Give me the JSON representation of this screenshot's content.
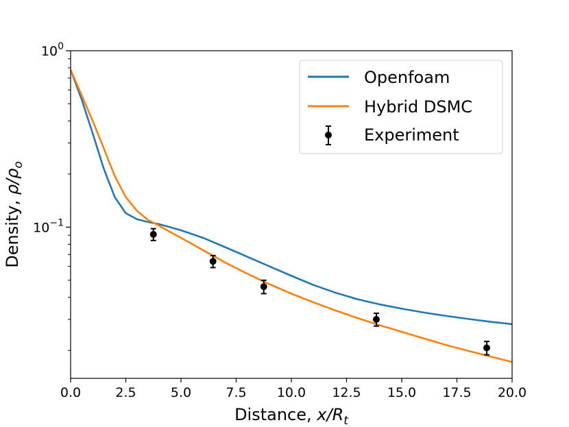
{
  "chart_data": {
    "type": "line",
    "title": "",
    "xlabel": "Distance, x/R_t",
    "xlabel_parts": {
      "text": "Distance, ",
      "math": "x/R",
      "sub": "t"
    },
    "ylabel": "Density, ρ/ρ_o",
    "ylabel_parts": {
      "text": "Density, ",
      "math": "ρ/ρ",
      "sub": "o"
    },
    "xlim": [
      0,
      20
    ],
    "ylim": [
      0.0139,
      1.0
    ],
    "yscale": "log",
    "grid": false,
    "legend_position": "top-right",
    "x_ticks": [
      {
        "value": 0,
        "label": "0.0"
      },
      {
        "value": 2.5,
        "label": "2.5"
      },
      {
        "value": 5,
        "label": "5.0"
      },
      {
        "value": 7.5,
        "label": "7.5"
      },
      {
        "value": 10,
        "label": "10.0"
      },
      {
        "value": 12.5,
        "label": "12.5"
      },
      {
        "value": 15,
        "label": "15.0"
      },
      {
        "value": 17.5,
        "label": "17.5"
      },
      {
        "value": 20,
        "label": "20.0"
      }
    ],
    "y_ticks": [
      {
        "value": 1.0,
        "base": "10",
        "exp": "0"
      },
      {
        "value": 0.1,
        "base": "10",
        "exp": "−1"
      }
    ],
    "y_minor_ticks": [
      0.9,
      0.8,
      0.7,
      0.6,
      0.5,
      0.4,
      0.3,
      0.2,
      0.09,
      0.08,
      0.07,
      0.06,
      0.05,
      0.04,
      0.03,
      0.02
    ],
    "series": [
      {
        "name": "Openfoam",
        "kind": "line",
        "color": "#1f77b4",
        "x": [
          0,
          0.5,
          1.0,
          1.5,
          2.0,
          2.5,
          3.0,
          3.5,
          4.0,
          4.5,
          5.0,
          6.0,
          7.0,
          8.0,
          9.0,
          10.0,
          11.0,
          12.0,
          13.0,
          14.0,
          15.0,
          16.0,
          17.0,
          18.0,
          19.0,
          20.0
        ],
        "y": [
          0.78,
          0.53,
          0.34,
          0.215,
          0.148,
          0.12,
          0.111,
          0.107,
          0.104,
          0.1,
          0.096,
          0.087,
          0.077,
          0.068,
          0.06,
          0.053,
          0.047,
          0.0425,
          0.039,
          0.0365,
          0.0345,
          0.0328,
          0.0314,
          0.0302,
          0.0291,
          0.0282
        ]
      },
      {
        "name": "Hybrid DSMC",
        "kind": "line",
        "color": "#ff7f0e",
        "x": [
          0,
          0.5,
          1.0,
          1.5,
          2.0,
          2.5,
          3.0,
          3.5,
          4.0,
          4.5,
          5.0,
          6.0,
          7.0,
          8.0,
          9.0,
          10.0,
          11.0,
          12.0,
          13.0,
          14.0,
          15.0,
          16.0,
          17.0,
          18.0,
          19.0,
          20.0
        ],
        "y": [
          0.78,
          0.56,
          0.4,
          0.28,
          0.195,
          0.148,
          0.124,
          0.11,
          0.102,
          0.094,
          0.087,
          0.074,
          0.063,
          0.0545,
          0.0475,
          0.042,
          0.0375,
          0.0337,
          0.0305,
          0.0278,
          0.0255,
          0.0234,
          0.0215,
          0.0199,
          0.0185,
          0.0172
        ]
      },
      {
        "name": "Experiment",
        "kind": "errorbar",
        "color": "#000000",
        "x": [
          3.75,
          6.45,
          8.75,
          13.85,
          18.85
        ],
        "y": [
          0.091,
          0.064,
          0.046,
          0.03,
          0.0207
        ],
        "yerr": [
          0.007,
          0.005,
          0.004,
          0.0025,
          0.0018
        ]
      }
    ]
  }
}
